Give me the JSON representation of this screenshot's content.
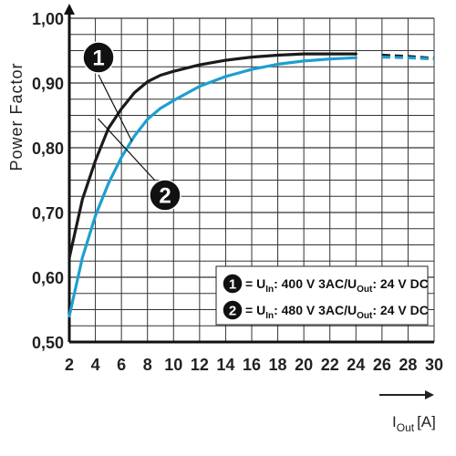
{
  "chart_data": {
    "type": "line",
    "xlabel_main": "I",
    "xlabel_sub": "Out",
    "xlabel_unit": "[A]",
    "ylabel": "Power Factor",
    "xlim": [
      2,
      30
    ],
    "ylim": [
      0.5,
      1.0
    ],
    "x_ticks": [
      2,
      4,
      6,
      8,
      10,
      12,
      14,
      16,
      18,
      20,
      22,
      24,
      26,
      28,
      30
    ],
    "x_tick_labels": [
      "2",
      "4",
      "6",
      "8",
      "10",
      "12",
      "14",
      "16",
      "18",
      "20",
      "22",
      "24",
      "26",
      "28",
      "30"
    ],
    "y_ticks": [
      0.5,
      0.6,
      0.7,
      0.8,
      0.9,
      1.0
    ],
    "y_tick_labels": [
      "0,50",
      "0,60",
      "0,70",
      "0,80",
      "0,90",
      "1,00"
    ],
    "grid": true,
    "legend_position": "bottom-right",
    "series": [
      {
        "name": "1",
        "color": "#1a1a1a",
        "solid_until": 25,
        "x": [
          2,
          3,
          4,
          5,
          6,
          7,
          8,
          9,
          10,
          12,
          14,
          16,
          18,
          20,
          22,
          24,
          26,
          28,
          30
        ],
        "values": [
          0.63,
          0.72,
          0.78,
          0.83,
          0.86,
          0.885,
          0.902,
          0.912,
          0.918,
          0.928,
          0.935,
          0.94,
          0.943,
          0.945,
          0.945,
          0.945,
          0.943,
          0.941,
          0.938
        ]
      },
      {
        "name": "2",
        "color": "#1e9fd0",
        "solid_until": 25,
        "x": [
          2,
          3,
          4,
          5,
          6,
          7,
          8,
          9,
          10,
          12,
          14,
          16,
          18,
          20,
          22,
          24,
          26,
          28,
          30
        ],
        "values": [
          0.54,
          0.63,
          0.695,
          0.745,
          0.785,
          0.818,
          0.844,
          0.861,
          0.873,
          0.895,
          0.91,
          0.921,
          0.929,
          0.934,
          0.937,
          0.939,
          0.94,
          0.939,
          0.937
        ]
      }
    ],
    "markers": [
      {
        "label": "1",
        "series": "1"
      },
      {
        "label": "2",
        "series": "2"
      }
    ],
    "legend": [
      {
        "badge": "1",
        "u_in_prefix": "= U",
        "u_in_sub": "In",
        "u_in_text": ": 400 V 3AC/U",
        "u_out_sub": "Out",
        "u_out_text": ": 24 V DC"
      },
      {
        "badge": "2",
        "u_in_prefix": "= U",
        "u_in_sub": "In",
        "u_in_text": ": 480 V 3AC/U",
        "u_out_sub": "Out",
        "u_out_text": ": 24 V DC"
      }
    ]
  }
}
